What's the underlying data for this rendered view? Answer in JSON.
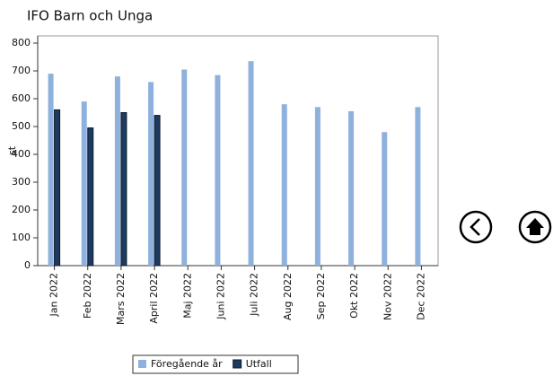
{
  "chart_data": {
    "type": "bar",
    "title": "IFO Barn och Unga",
    "y_label": "st",
    "categories": [
      "Jan 2022",
      "Feb 2022",
      "Mars 2022",
      "April 2022",
      "Maj 2022",
      "Juni 2022",
      "Juli 2022",
      "Aug 2022",
      "Sep 2022",
      "Okt 2022",
      "Nov 2022",
      "Dec 2022"
    ],
    "series": [
      {
        "name": "Föregående år",
        "color": "#8fb1dd",
        "values": [
          690,
          590,
          680,
          660,
          705,
          685,
          735,
          580,
          570,
          555,
          480,
          570
        ]
      },
      {
        "name": "Utfall",
        "color": "#1f3a5f",
        "values": [
          560,
          495,
          550,
          540,
          null,
          null,
          null,
          null,
          null,
          null,
          null,
          null
        ]
      }
    ],
    "ylim": [
      0,
      800
    ],
    "yticks": [
      0,
      100,
      200,
      300,
      400,
      500,
      600,
      700,
      800
    ],
    "grid": false
  }
}
